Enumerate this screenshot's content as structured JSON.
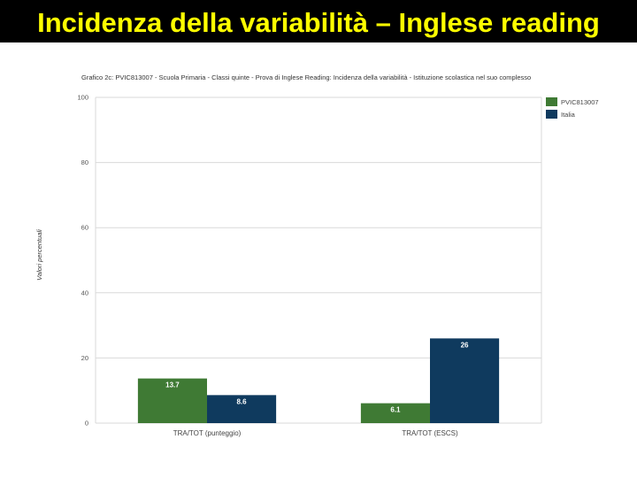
{
  "slide": {
    "title": "Incidenza della variabilità – Inglese reading"
  },
  "colors": {
    "title_bg": "#000000",
    "title_text": "#ffff00",
    "series_school": "#3f7a34",
    "series_italy": "#0f3a5e"
  },
  "chart_data": {
    "type": "bar",
    "title": "Grafico 2c: PVIC813007 - Scuola Primaria - Classi quinte - Prova di Inglese Reading: Incidenza della variabilità - Istituzione scolastica nel suo complesso",
    "xlabel": "",
    "ylabel": "Valori percentuali",
    "categories": [
      "TRA/TOT (punteggio)",
      "TRA/TOT (ESCS)"
    ],
    "series": [
      {
        "name": "PVIC813007",
        "values": [
          13.7,
          6.1
        ],
        "labels": [
          "13.7",
          "6.1"
        ],
        "color": "#3f7a34"
      },
      {
        "name": "Italia",
        "values": [
          8.6,
          26
        ],
        "labels": [
          "8.6",
          "26"
        ],
        "color": "#0f3a5e"
      }
    ],
    "ylim": [
      0,
      100
    ],
    "yticks": [
      "0",
      "20",
      "40",
      "60",
      "80",
      "100"
    ],
    "grid": true,
    "legend_position": "top-right"
  }
}
